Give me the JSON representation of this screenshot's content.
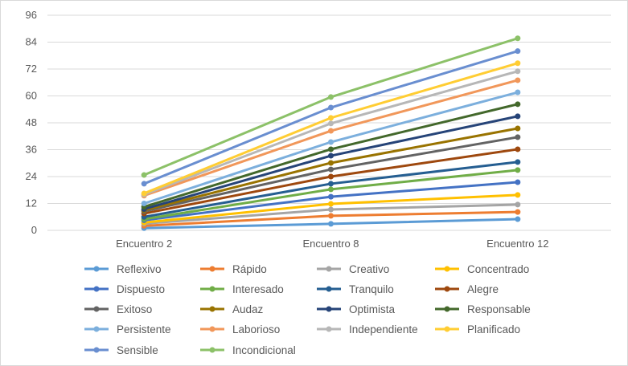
{
  "chart_data": {
    "type": "line",
    "categories": [
      "Encuentro 2",
      "Encuentro 8",
      "Encuentro 12"
    ],
    "ylim": [
      0,
      96
    ],
    "yticks": [
      0,
      12,
      24,
      36,
      48,
      60,
      72,
      84,
      96
    ],
    "grid": true,
    "legend_placement": "bottom",
    "series": [
      {
        "name": "Reflexivo",
        "color": "#5b9bd5",
        "values": [
          1,
          2.9,
          5
        ]
      },
      {
        "name": "Rápido",
        "color": "#ed7d31",
        "values": [
          2,
          6.5,
          8.2
        ]
      },
      {
        "name": "Creativo",
        "color": "#a5a5a5",
        "values": [
          3,
          9.3,
          11.5
        ]
      },
      {
        "name": "Concentrado",
        "color": "#ffc000",
        "values": [
          3.5,
          11.8,
          15.8
        ]
      },
      {
        "name": "Dispuesto",
        "color": "#4472c4",
        "values": [
          4.5,
          15,
          21.5
        ]
      },
      {
        "name": "Interesado",
        "color": "#70ad47",
        "values": [
          5,
          18.3,
          26.9
        ]
      },
      {
        "name": "Tranquilo",
        "color": "#255e91",
        "values": [
          6,
          20.8,
          30.5
        ]
      },
      {
        "name": "Alegre",
        "color": "#9e480e",
        "values": [
          7.5,
          24,
          36.2
        ]
      },
      {
        "name": "Exitoso",
        "color": "#636363",
        "values": [
          8.5,
          27.2,
          41.6
        ]
      },
      {
        "name": "Audaz",
        "color": "#997300",
        "values": [
          9,
          30.1,
          45.5
        ]
      },
      {
        "name": "Optimista",
        "color": "#264478",
        "values": [
          9.5,
          33.3,
          50.9
        ]
      },
      {
        "name": "Responsable",
        "color": "#43682b",
        "values": [
          10.5,
          36.2,
          56.3
        ]
      },
      {
        "name": "Persistente",
        "color": "#7cafdd",
        "values": [
          12,
          39.4,
          61.6
        ]
      },
      {
        "name": "Laborioso",
        "color": "#f1975a",
        "values": [
          15.5,
          44.4,
          67
        ]
      },
      {
        "name": "Independiente",
        "color": "#b7b7b7",
        "values": [
          16,
          47.7,
          71
        ]
      },
      {
        "name": "Planificado",
        "color": "#ffcd33",
        "values": [
          16.5,
          50.2,
          74.6
        ]
      },
      {
        "name": "Sensible",
        "color": "#698ed0",
        "values": [
          20.8,
          54.8,
          80
        ]
      },
      {
        "name": "Incondicional",
        "color": "#8cc168",
        "values": [
          24.7,
          59.5,
          85.7
        ]
      }
    ]
  }
}
